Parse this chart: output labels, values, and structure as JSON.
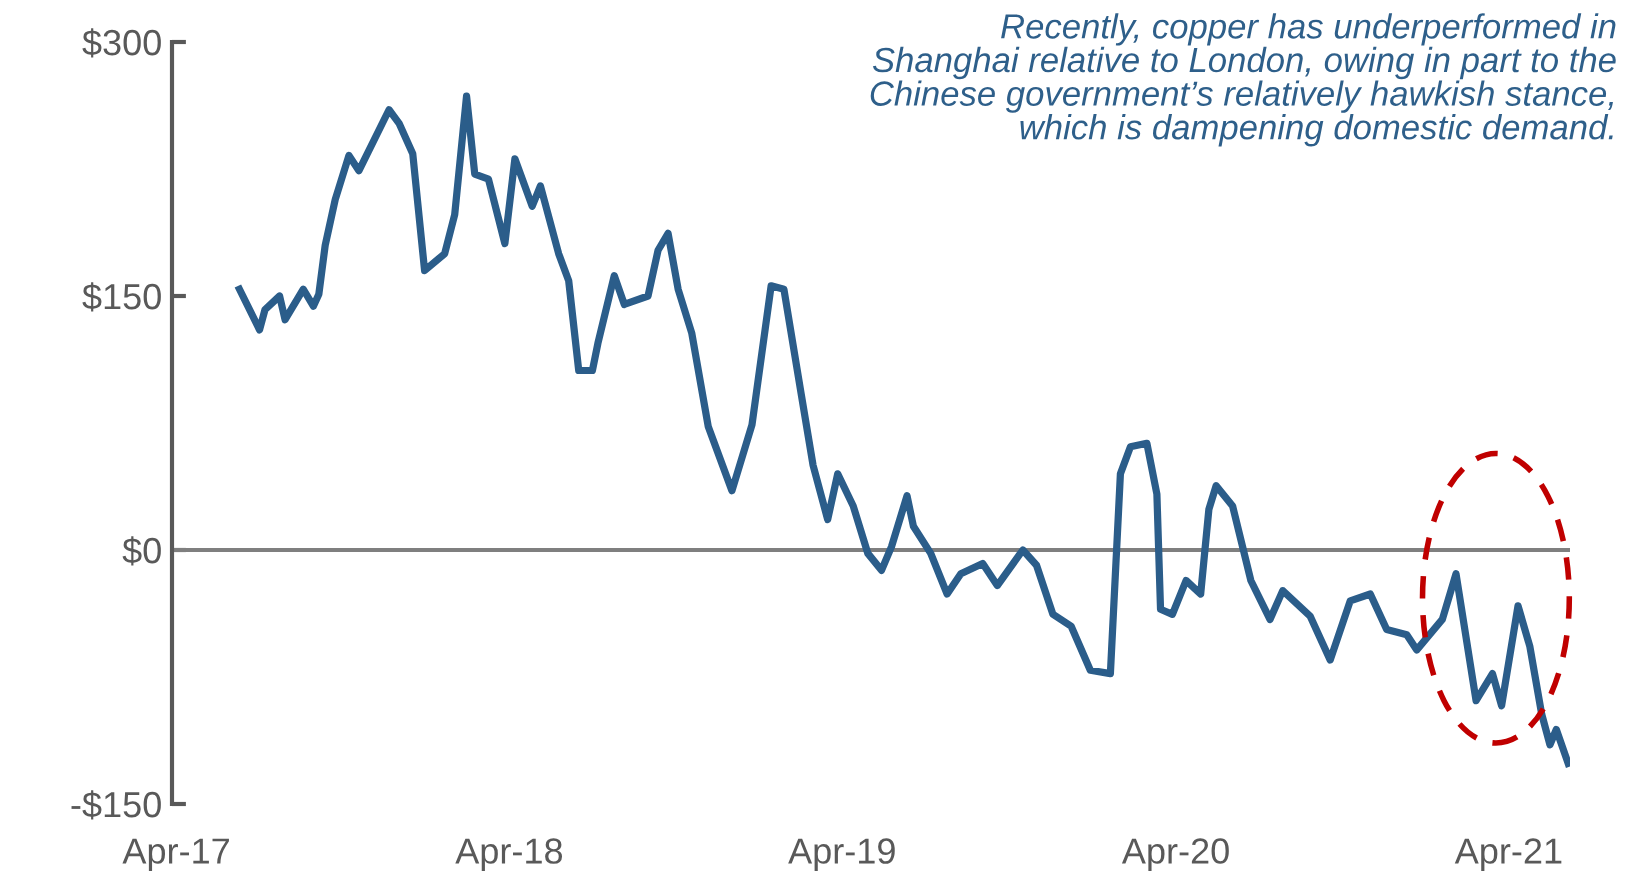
{
  "chart_data": {
    "type": "line",
    "annotations": [
      "Recently, copper has underperformed in\nShanghai relative to London, owing in part to the\nChinese government’s relatively hawkish stance,\nwhich is dampening domestic demand."
    ],
    "x": [
      "2017-06-09",
      "2017-07-01",
      "2017-07-07",
      "2017-07-23",
      "2017-07-29",
      "2017-08-18",
      "2017-08-29",
      "2017-09-04",
      "2017-09-11",
      "2017-09-22",
      "2017-10-07",
      "2017-10-18",
      "2017-11-20",
      "2017-12-01",
      "2017-12-16",
      "2017-12-29",
      "2018-01-20",
      "2018-01-31",
      "2018-02-13",
      "2018-02-22",
      "2018-03-09",
      "2018-03-27",
      "2018-04-07",
      "2018-04-26",
      "2018-05-05",
      "2018-05-25",
      "2018-06-05",
      "2018-06-16",
      "2018-07-01",
      "2018-07-07",
      "2018-07-25",
      "2018-08-05",
      "2018-08-31",
      "2018-09-11",
      "2018-09-22",
      "2018-10-03",
      "2018-10-18",
      "2018-11-05",
      "2018-12-01",
      "2018-12-23",
      "2019-01-13",
      "2019-01-27",
      "2019-02-15",
      "2019-02-28",
      "2019-03-16",
      "2019-03-27",
      "2019-04-13",
      "2019-04-29",
      "2019-05-14",
      "2019-05-25",
      "2019-06-11",
      "2019-06-18",
      "2019-07-07",
      "2019-07-25",
      "2019-08-09",
      "2019-09-02",
      "2019-09-18",
      "2019-10-16",
      "2019-10-31",
      "2019-11-18",
      "2019-12-08",
      "2019-12-29",
      "2020-01-20",
      "2020-01-31",
      "2020-02-11",
      "2020-02-29",
      "2020-03-11",
      "2020-03-15",
      "2020-03-28",
      "2020-04-12",
      "2020-04-28",
      "2020-05-07",
      "2020-05-15",
      "2020-06-02",
      "2020-06-22",
      "2020-07-13",
      "2020-07-27",
      "2020-08-26",
      "2020-09-17",
      "2020-10-09",
      "2020-10-31",
      "2020-11-18",
      "2020-12-10",
      "2020-12-21",
      "2021-01-18",
      "2021-02-02",
      "2021-02-24",
      "2021-03-14",
      "2021-03-24",
      "2021-04-11",
      "2021-04-24",
      "2021-05-07",
      "2021-05-16",
      "2021-05-23",
      "2021-06-05"
    ],
    "series": [
      {
        "color": "#2b5d8a",
        "values": [
          154,
          130,
          142,
          150,
          136,
          154,
          144,
          151,
          180,
          207,
          233,
          224,
          260,
          252,
          234,
          165,
          175,
          198,
          268,
          222,
          219,
          181,
          231,
          203,
          215,
          175,
          159,
          106,
          106,
          122,
          162,
          145,
          150,
          177,
          187,
          154,
          128,
          73,
          35,
          74,
          156,
          154,
          92,
          50,
          18,
          45,
          26,
          -2,
          -12,
          2,
          32,
          14,
          -2,
          -26,
          -14,
          -8,
          -21,
          0,
          -9,
          -38,
          -45,
          -71,
          -73,
          45,
          61,
          63,
          33,
          -35,
          -38,
          -18,
          -26,
          24,
          38,
          26,
          -18,
          -41,
          -24,
          -39,
          -65,
          -30,
          -26,
          -47,
          -50,
          -59,
          -41,
          -14,
          -89,
          -73,
          -92,
          -33,
          -57,
          -97,
          -115,
          -106,
          -126
        ]
      }
    ],
    "xlim": [
      "2017-03-27",
      "2021-06-07"
    ],
    "xticks": [
      {
        "value": "2017-04-01",
        "label": "Apr-17"
      },
      {
        "value": "2018-04-01",
        "label": "Apr-18"
      },
      {
        "value": "2019-04-01",
        "label": "Apr-19"
      },
      {
        "value": "2020-04-01",
        "label": "Apr-20"
      },
      {
        "value": "2021-04-01",
        "label": "Apr-21"
      }
    ],
    "ylim": [
      -150,
      300
    ],
    "yticks": [
      {
        "value": 300,
        "label": "$300"
      },
      {
        "value": 150,
        "label": "$150"
      },
      {
        "value": 0,
        "label": "$0"
      },
      {
        "value": -150,
        "label": "-$150"
      }
    ],
    "ref_lines": [
      {
        "axis": "y",
        "value": 0,
        "color": "#7f7f7f"
      }
    ],
    "grid": false,
    "legend": false,
    "marker": "none",
    "line_style": "solid"
  }
}
